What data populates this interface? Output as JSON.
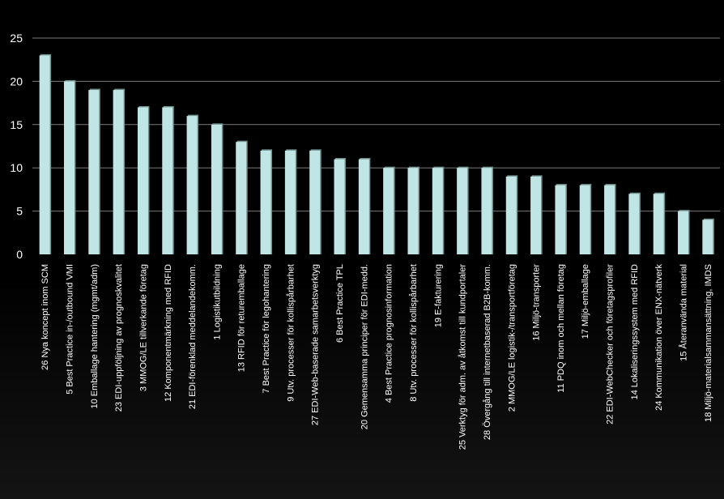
{
  "colors": {
    "background": "#000000",
    "bar": "#bfe6e4",
    "bar_shadow": "#6f8e8c",
    "grid": "#7a7a7a",
    "text": "#ffffff"
  },
  "chart_data": {
    "type": "bar",
    "title": "",
    "xlabel": "",
    "ylabel": "",
    "ylim": [
      0,
      25
    ],
    "yticks": [
      0,
      5,
      10,
      15,
      20,
      25
    ],
    "grid": true,
    "legend": "none",
    "categories": [
      "26 Nya koncept inom SCM",
      "5 Best Practice in-/outbound VMI",
      "10 Emballage hantering (mgmt/adm)",
      "23 EDI-uppföljning av prognoskvalitet",
      "3 MMOG/LE tillverkande företag",
      "12 Komponentmärkning med RFID",
      "21 EDI-förenklad meddelandekomm.",
      "1 Logistikutbildning",
      "13 RFID för returemballage",
      "7 Best Practice för legohantering",
      "9 Utv. processer för kollispårbarhet",
      "27 EDI-Web-baserade samarbetsverktyg",
      "6 Best Practice TPL",
      "20 Gemensamma principer för EDI-medd.",
      "4 Best Practice prognosinformation",
      "8 Utv. processer för kollispårbarhet",
      "19 E-fakturering",
      "25 Verktyg för adm. av åtkomst till kundportaler",
      "28 Övergång till internetbaserad B2B-komm.",
      "2 MMOG/LE logistik-/transportföretag",
      "16 Miljö-transporter",
      "11 PDQ inom och mellan företag",
      "17 Miljö-emballage",
      "22 EDI-WebChecker och företagsprofiler",
      "14 Lokaliseringssystem med RFID",
      "24 Kommunikation över ENX-nätverk",
      "15 Återanvända material",
      "18 Miljö-materialsammansättning, IMDS"
    ],
    "values": [
      23,
      20,
      19,
      19,
      17,
      17,
      16,
      15,
      13,
      12,
      12,
      12,
      11,
      11,
      10,
      10,
      10,
      10,
      10,
      9,
      9,
      8,
      8,
      8,
      7,
      7,
      5,
      4
    ]
  }
}
